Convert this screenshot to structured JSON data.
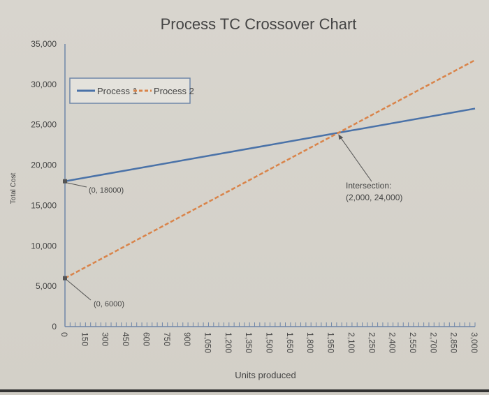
{
  "chart_data": {
    "type": "line",
    "title": "Process TC Crossover Chart",
    "xlabel": "Units produced",
    "ylabel": "Total Cost",
    "xlim": [
      0,
      3000
    ],
    "ylim": [
      0,
      35000
    ],
    "x_ticks": [
      "0",
      "150",
      "300",
      "450",
      "600",
      "750",
      "900",
      "1,050",
      "1,200",
      "1,350",
      "1,500",
      "1,650",
      "1,800",
      "1,950",
      "2,100",
      "2,250",
      "2,400",
      "2,550",
      "2,700",
      "2,850",
      "3,000"
    ],
    "y_ticks": [
      "0",
      "5,000",
      "10,000",
      "15,000",
      "20,000",
      "25,000",
      "30,000",
      "35,000"
    ],
    "grid": false,
    "legend": "top-left",
    "series": [
      {
        "name": "Process 1",
        "color": "#4a72a8",
        "style": "solid",
        "x": [
          0,
          2000,
          3000
        ],
        "y": [
          18000,
          24000,
          27000
        ]
      },
      {
        "name": "Process 2",
        "color": "#d9844a",
        "style": "dashed",
        "x": [
          0,
          2000,
          3000
        ],
        "y": [
          6000,
          24000,
          33000
        ]
      }
    ],
    "annotations": [
      {
        "text": "(0, 18000)",
        "x": 0,
        "y": 18000
      },
      {
        "text": "(0, 6000)",
        "x": 0,
        "y": 6000
      },
      {
        "text": "Intersection:",
        "text2": "(2,000, 24,000)",
        "x": 2000,
        "y": 24000
      }
    ]
  }
}
